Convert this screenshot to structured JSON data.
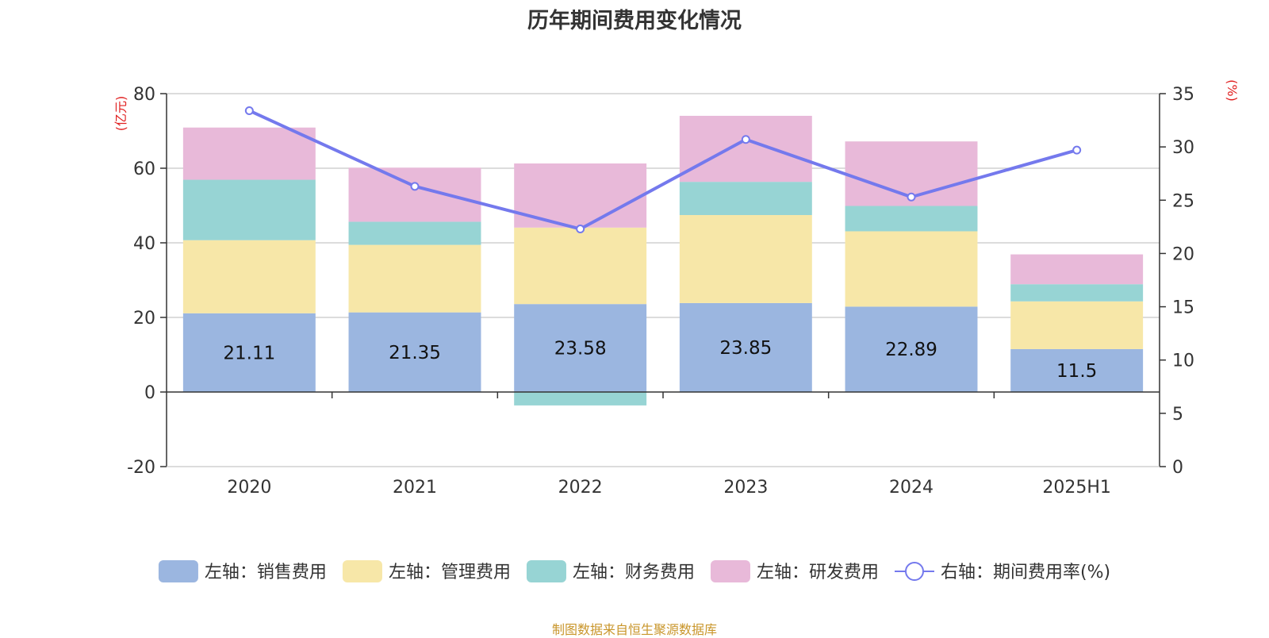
{
  "title": "历年期间费用变化情况",
  "source": "制图数据来自恒生聚源数据库",
  "chart_data": {
    "type": "bar",
    "stacked": true,
    "title": "历年期间费用变化情况",
    "categories": [
      "2020",
      "2021",
      "2022",
      "2023",
      "2024",
      "2025H1"
    ],
    "left_axis": {
      "label": "(亿元)",
      "range": [
        -20,
        80
      ],
      "ticks": [
        -20,
        0,
        20,
        40,
        60,
        80
      ]
    },
    "right_axis": {
      "label": "(%)",
      "range": [
        0,
        35
      ],
      "ticks": [
        0,
        5,
        10,
        15,
        20,
        25,
        30,
        35
      ]
    },
    "grid": true,
    "legend_position": "bottom",
    "series": [
      {
        "name": "左轴：销售费用",
        "axis": "left",
        "type": "bar",
        "color": "#9bb6e0",
        "values": [
          21.11,
          21.35,
          23.58,
          23.85,
          22.89,
          11.5
        ],
        "show_labels": true
      },
      {
        "name": "左轴：管理费用",
        "axis": "left",
        "type": "bar",
        "color": "#f7e7a8",
        "values": [
          19.6,
          18.1,
          20.5,
          23.6,
          20.2,
          12.8
        ]
      },
      {
        "name": "左轴：财务费用",
        "axis": "left",
        "type": "bar",
        "color": "#97d4d4",
        "values": [
          16.2,
          6.2,
          -3.6,
          8.9,
          6.8,
          4.6
        ]
      },
      {
        "name": "左轴：研发费用",
        "axis": "left",
        "type": "bar",
        "color": "#e8b9d9",
        "values": [
          14.0,
          14.5,
          17.2,
          17.7,
          17.3,
          8.0
        ]
      },
      {
        "name": "右轴：期间费用率(%)",
        "axis": "right",
        "type": "line",
        "color": "#7479ed",
        "values": [
          33.4,
          26.3,
          22.3,
          30.7,
          25.3,
          29.7
        ]
      }
    ]
  }
}
